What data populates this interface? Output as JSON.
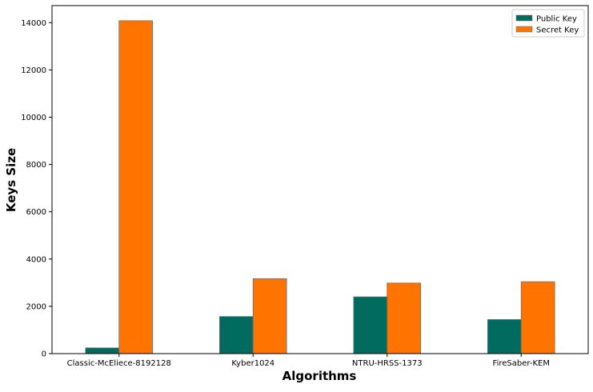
{
  "chart_data": {
    "type": "bar",
    "title": "",
    "xlabel": "Algorithms",
    "ylabel": "Keys Size",
    "categories": [
      "Classic-McEliece-8192128",
      "Kyber1024",
      "NTRU-HRSS-1373",
      "FireSaber-KEM"
    ],
    "series": [
      {
        "name": "Public Key",
        "values": [
          240,
          1568,
          2401,
          1440
        ],
        "color": "#006b5e"
      },
      {
        "name": "Secret Key",
        "values": [
          14080,
          3168,
          2983,
          3040
        ],
        "color": "#ff7300"
      }
    ],
    "ylim": [
      0,
      14720
    ],
    "yticks": [
      0,
      2000,
      4000,
      6000,
      8000,
      10000,
      12000,
      14000
    ],
    "grid": false,
    "legend_position": "top-right"
  }
}
